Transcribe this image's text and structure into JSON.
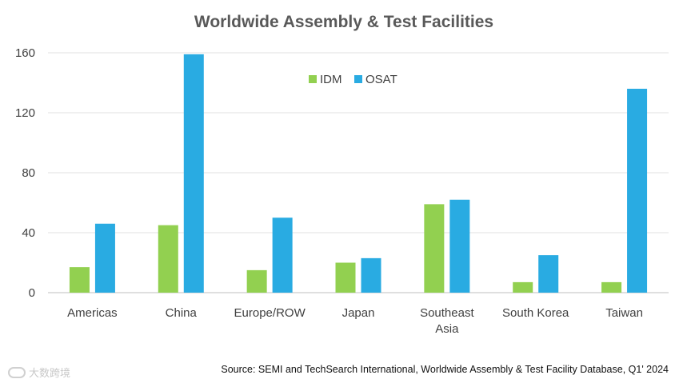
{
  "chart_data": {
    "type": "bar",
    "title": "Worldwide Assembly & Test Facilities",
    "categories": [
      "Americas",
      "China",
      "Europe/ROW",
      "Japan",
      "Southeast Asia",
      "South Korea",
      "Taiwan"
    ],
    "series": [
      {
        "name": "IDM",
        "color": "#92d050",
        "values": [
          17,
          45,
          15,
          20,
          59,
          7,
          7
        ]
      },
      {
        "name": "OSAT",
        "color": "#29abe2",
        "values": [
          46,
          159,
          50,
          23,
          62,
          25,
          136
        ]
      }
    ],
    "ylim": [
      0,
      160
    ],
    "yticks": [
      0,
      40,
      80,
      120,
      160
    ],
    "xlabel": "",
    "ylabel": "",
    "grid": true,
    "legend": "top-center"
  },
  "source": "Source: SEMI and TechSearch International, Worldwide Assembly & Test Facility Database, Q1' 2024",
  "watermark": "大数跨境"
}
